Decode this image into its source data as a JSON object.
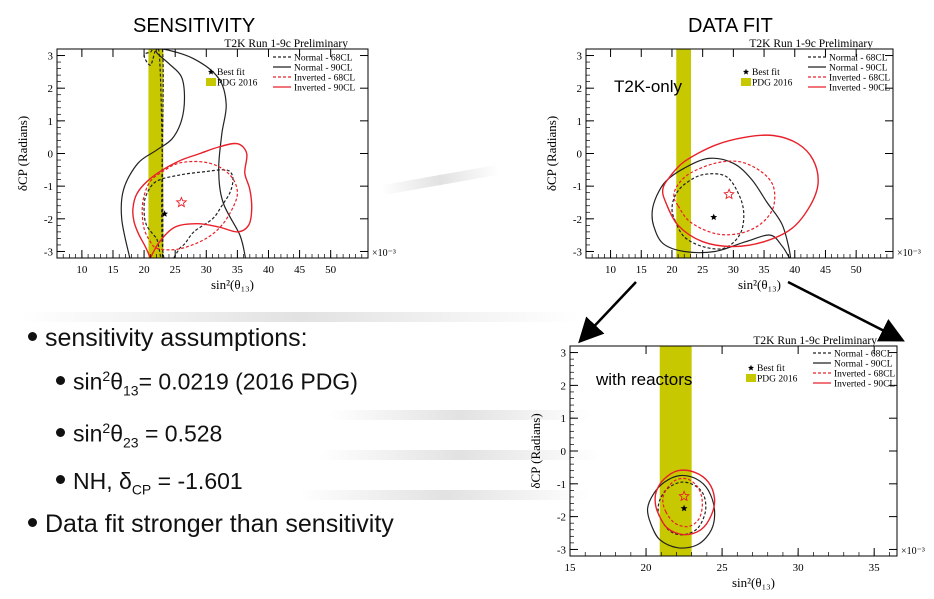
{
  "headings": {
    "sensitivity": "SENSITIVITY",
    "datafit": "DATA FIT"
  },
  "bullets": {
    "main": "sensitivity assumptions:",
    "s1_a": "sin",
    "s1_sup": "2",
    "s1_b": "θ",
    "s1_sub": "13",
    "s1_c": "= 0.0219 (2016 PDG)",
    "s2_a": "sin",
    "s2_sup": "2",
    "s2_b": "θ",
    "s2_sub": "23",
    "s2_c": " = 0.528",
    "s3_a": "NH, δ",
    "s3_sub": "CP",
    "s3_c": " = -1.601",
    "last": "Data fit stronger than sensitivity"
  },
  "colors": {
    "normal": "#222222",
    "inverted": "#e8202a",
    "pdg": "#c8c800",
    "star": "#e8202a"
  },
  "chart_data": [
    {
      "type": "line",
      "name": "sensitivity",
      "title": "T2K Run 1-9c Preliminary",
      "xlabel": "sin²(θ₁₃)",
      "ylabel": "δCP (Radians)",
      "xexp": "×10⁻³",
      "xlim": [
        6,
        56
      ],
      "ylim": [
        -3.2,
        3.2
      ],
      "xticks": [
        10,
        15,
        20,
        25,
        30,
        35,
        40,
        45,
        50
      ],
      "yticks": [
        -3,
        -2,
        -1,
        0,
        1,
        2,
        3
      ],
      "legend": [
        "Normal - 68CL",
        "Normal - 90CL",
        "Inverted - 68CL",
        "Inverted - 90CL",
        "Best fit",
        "PDG 2016"
      ],
      "pdg_band": [
        20.7,
        23.1
      ],
      "best_fit_normal": [
        23.3,
        -1.85
      ],
      "best_fit_inverted": [
        26.0,
        -1.5
      ],
      "series": [
        {
          "name": "Normal - 68CL",
          "style": "n68",
          "x": [
            23,
            26,
            28,
            31,
            32.5,
            33.8,
            34.3,
            33.8,
            32.5,
            30,
            26,
            22,
            20.3,
            20,
            20.4,
            22,
            23,
            22.5,
            21,
            20,
            21,
            23
          ],
          "y": [
            -2.95,
            -2.85,
            -2.4,
            -2,
            -1.6,
            -1.2,
            -0.8,
            -0.55,
            -0.5,
            -0.55,
            -0.65,
            -0.85,
            -1.3,
            -1.75,
            -2.2,
            -2.6,
            -2.9,
            2.9,
            2.7,
            3.0,
            3.1,
            3.1
          ]
        },
        {
          "name": "Normal - 90CL",
          "style": "n90",
          "x": [
            17.7,
            16.4,
            16.7,
            19,
            22,
            24.5,
            26,
            26.5,
            26,
            24,
            22,
            23,
            28,
            32,
            33.2,
            32.5,
            32,
            32.7,
            35.4,
            36.3
          ],
          "y": [
            -3.2,
            -2.0,
            -1.1,
            -0.3,
            0.1,
            0.45,
            1.0,
            1.7,
            2.35,
            2.75,
            3.1,
            3.2,
            2.9,
            2.3,
            1.5,
            0.6,
            -0.5,
            -1.5,
            -2.5,
            -3.2
          ]
        },
        {
          "name": "Inverted - 68CL",
          "style": "i68",
          "x": [
            22,
            24.5,
            27,
            30,
            32.5,
            34.3,
            35,
            34.2,
            32,
            29,
            25.5,
            23,
            21,
            20,
            19.7,
            20,
            21
          ],
          "y": [
            -2.9,
            -2.95,
            -2.85,
            -2.6,
            -2.2,
            -1.65,
            -1.2,
            -0.75,
            -0.4,
            -0.25,
            -0.3,
            -0.55,
            -0.85,
            -1.3,
            -1.75,
            -2.3,
            -2.7
          ]
        },
        {
          "name": "Inverted - 90CL",
          "style": "i90",
          "x": [
            21,
            22.5,
            25,
            28.5,
            32,
            35,
            36.8,
            37.3,
            37,
            36.2,
            36.5,
            35,
            32,
            29,
            26,
            23,
            20.5,
            18.8,
            18.2,
            18.4,
            19.2,
            20.2,
            21
          ],
          "y": [
            -3.2,
            -2.7,
            -2.25,
            -2.15,
            -2.25,
            -2.4,
            -2.2,
            -1.7,
            -1.1,
            -0.6,
            0.0,
            0.3,
            0.2,
            0.0,
            -0.2,
            -0.5,
            -0.85,
            -1.25,
            -1.7,
            -2.1,
            -2.5,
            -2.85,
            -3.2
          ]
        }
      ]
    },
    {
      "type": "line",
      "name": "datafit-t2k",
      "title": "T2K Run 1-9c Preliminary",
      "annotation": "T2K-only",
      "xlabel": "sin²(θ₁₃)",
      "ylabel": "δCP (Radians)",
      "xexp": "×10⁻³",
      "xlim": [
        6,
        56
      ],
      "ylim": [
        -3.2,
        3.2
      ],
      "xticks": [
        10,
        15,
        20,
        25,
        30,
        35,
        40,
        45,
        50
      ],
      "yticks": [
        -3,
        -2,
        -1,
        0,
        1,
        2,
        3
      ],
      "legend": [
        "Normal - 68CL",
        "Normal - 90CL",
        "Inverted - 68CL",
        "Inverted - 90CL",
        "Best fit",
        "PDG 2016"
      ],
      "pdg_band": [
        20.7,
        23.1
      ],
      "best_fit_normal": [
        26.8,
        -1.95
      ],
      "best_fit_inverted": [
        29.3,
        -1.25
      ],
      "series": [
        {
          "name": "Normal - 68CL",
          "style": "n68",
          "x": [
            20.5,
            22,
            25,
            28.5,
            31,
            31.7,
            31,
            28.8,
            25,
            22,
            20.5,
            20
          ],
          "y": [
            -2.05,
            -2.55,
            -2.85,
            -2.9,
            -2.5,
            -1.9,
            -1.3,
            -0.7,
            -0.65,
            -0.95,
            -1.3,
            -1.7
          ]
        },
        {
          "name": "Normal - 90CL",
          "style": "n90",
          "x": [
            17,
            18.5,
            22,
            27,
            32,
            36,
            38,
            39.3,
            38,
            35.5,
            33,
            30,
            26,
            22,
            19,
            17.5,
            16.8
          ],
          "y": [
            -2.2,
            -2.75,
            -3.0,
            -3.0,
            -2.7,
            -2.5,
            -2.85,
            -3.2,
            -2.2,
            -1.5,
            -0.8,
            -0.3,
            -0.15,
            -0.45,
            -0.85,
            -1.3,
            -1.75
          ]
        },
        {
          "name": "Inverted - 68CL",
          "style": "i68",
          "x": [
            21,
            23,
            27,
            31,
            34.5,
            36.5,
            36.5,
            34.5,
            31,
            27,
            23,
            21,
            20.3
          ],
          "y": [
            -1.6,
            -2.1,
            -2.45,
            -2.45,
            -2.15,
            -1.65,
            -1.0,
            -0.55,
            -0.25,
            -0.3,
            -0.6,
            -0.95,
            -1.3
          ]
        },
        {
          "name": "Inverted - 90CL",
          "style": "i90",
          "x": [
            19,
            21,
            25,
            30,
            35,
            39.5,
            42.5,
            43.8,
            43,
            40.5,
            36.5,
            32,
            27,
            22,
            19.5,
            18.5
          ],
          "y": [
            -1.5,
            -2.2,
            -2.7,
            -2.85,
            -2.7,
            -2.3,
            -1.6,
            -0.9,
            -0.2,
            0.3,
            0.55,
            0.5,
            0.25,
            -0.25,
            -0.75,
            -1.1
          ]
        }
      ]
    },
    {
      "type": "line",
      "name": "datafit-reactor",
      "title": "T2K Run 1-9c Preliminary",
      "annotation": "with reactors",
      "xlabel": "sin²(θ₁₃)",
      "ylabel": "δCP (Radians)",
      "xexp": "×10⁻³",
      "xlim": [
        15,
        36.5
      ],
      "ylim": [
        -3.2,
        3.2
      ],
      "xticks": [
        15,
        20,
        25,
        30,
        35
      ],
      "yticks": [
        -3,
        -2,
        -1,
        0,
        1,
        2,
        3
      ],
      "legend": [
        "Best fit",
        "PDG 2016",
        "Normal - 68CL",
        "Normal - 90CL",
        "Inverted - 68CL",
        "Inverted - 90CL"
      ],
      "pdg_band": [
        20.9,
        23.0
      ],
      "best_fit_normal": [
        22.5,
        -1.75
      ],
      "best_fit_inverted": [
        22.5,
        -1.38
      ],
      "series": [
        {
          "name": "Normal - 68CL",
          "style": "n68",
          "x": [
            21,
            21.6,
            22.5,
            23.4,
            23.9,
            23.8,
            23.2,
            22.3,
            21.4,
            20.9,
            20.8
          ],
          "y": [
            -2.1,
            -2.45,
            -2.55,
            -2.35,
            -1.85,
            -1.35,
            -1.05,
            -0.95,
            -1.15,
            -1.5,
            -1.85
          ]
        },
        {
          "name": "Normal - 90CL",
          "style": "n90",
          "x": [
            20.3,
            20.9,
            22.1,
            23.4,
            24.3,
            24.5,
            24.1,
            23.3,
            22.2,
            21.2,
            20.5,
            20.1
          ],
          "y": [
            -2.2,
            -2.7,
            -2.95,
            -2.85,
            -2.4,
            -1.8,
            -1.2,
            -0.85,
            -0.75,
            -0.95,
            -1.3,
            -1.75
          ]
        },
        {
          "name": "Inverted - 68CL",
          "style": "i68",
          "x": [
            21.3,
            21.9,
            22.8,
            23.5,
            23.7,
            23.4,
            22.7,
            21.9,
            21.3,
            21.1
          ],
          "y": [
            -1.85,
            -2.2,
            -2.3,
            -2.05,
            -1.55,
            -1.1,
            -0.85,
            -0.9,
            -1.2,
            -1.5
          ]
        },
        {
          "name": "Inverted - 90CL",
          "style": "i90",
          "x": [
            20.8,
            21.4,
            22.5,
            23.6,
            24.3,
            24.5,
            24.1,
            23.2,
            22.1,
            21.2,
            20.7,
            20.6
          ],
          "y": [
            -1.9,
            -2.35,
            -2.55,
            -2.4,
            -1.95,
            -1.45,
            -0.95,
            -0.65,
            -0.6,
            -0.85,
            -1.2,
            -1.55
          ]
        }
      ]
    }
  ]
}
